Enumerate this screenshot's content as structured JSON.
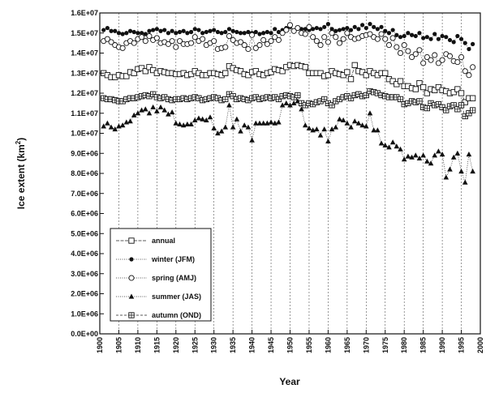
{
  "chart_data": {
    "type": "line",
    "xlabel": "Year",
    "ylabel_main": "Ice extent (km",
    "ylabel_sup": "2",
    "ylabel_end": ")",
    "xlim": [
      1900,
      2000
    ],
    "ylim": [
      0,
      16000000
    ],
    "x_ticks": [
      "1900",
      "1905",
      "1910",
      "1915",
      "1920",
      "1925",
      "1930",
      "1935",
      "1940",
      "1945",
      "1950",
      "1955",
      "1960",
      "1965",
      "1970",
      "1975",
      "1980",
      "1985",
      "1990",
      "1995",
      "2000"
    ],
    "y_ticks": [
      "0.0E+00",
      "1.0E+06",
      "2.0E+06",
      "3.0E+06",
      "4.0E+06",
      "5.0E+06",
      "6.0E+06",
      "7.0E+06",
      "8.0E+06",
      "9.0E+06",
      "1.0E+07",
      "1.1E+07",
      "1.2E+07",
      "1.3E+07",
      "1.4E+07",
      "1.5E+07",
      "1.6E+07"
    ],
    "grid": "vertical dashed lines at each x tick",
    "legend_position": "lower-left",
    "x": [
      1901,
      1902,
      1903,
      1904,
      1905,
      1906,
      1907,
      1908,
      1909,
      1910,
      1911,
      1912,
      1913,
      1914,
      1915,
      1916,
      1917,
      1918,
      1919,
      1920,
      1921,
      1922,
      1923,
      1924,
      1925,
      1926,
      1927,
      1928,
      1929,
      1930,
      1931,
      1932,
      1933,
      1934,
      1935,
      1936,
      1937,
      1938,
      1939,
      1940,
      1941,
      1942,
      1943,
      1944,
      1945,
      1946,
      1947,
      1948,
      1949,
      1950,
      1951,
      1952,
      1953,
      1954,
      1955,
      1956,
      1957,
      1958,
      1959,
      1960,
      1961,
      1962,
      1963,
      1964,
      1965,
      1966,
      1967,
      1968,
      1969,
      1970,
      1971,
      1972,
      1973,
      1974,
      1975,
      1976,
      1977,
      1978,
      1979,
      1980,
      1981,
      1982,
      1983,
      1984,
      1985,
      1986,
      1987,
      1988,
      1989,
      1990,
      1991,
      1992,
      1993,
      1994,
      1995,
      1996,
      1997,
      1998
    ],
    "series": [
      {
        "name": "annual",
        "marker": "square-open",
        "values": [
          13000000,
          12900000,
          12800000,
          12800000,
          12900000,
          12850000,
          12850000,
          13050000,
          13000000,
          13200000,
          13250000,
          13100000,
          13300000,
          13150000,
          13000000,
          13100000,
          13050000,
          13000000,
          13000000,
          12950000,
          12950000,
          13000000,
          12900000,
          12950000,
          13100000,
          13000000,
          12900000,
          12900000,
          13000000,
          13000000,
          12950000,
          12900000,
          13000000,
          13350000,
          13250000,
          13150000,
          13100000,
          12950000,
          12900000,
          13050000,
          13100000,
          12950000,
          12900000,
          13000000,
          13050000,
          13200000,
          13150000,
          13100000,
          13300000,
          13400000,
          13350000,
          13400000,
          13350000,
          13300000,
          13000000,
          13000000,
          13000000,
          13000000,
          12850000,
          12900000,
          13100000,
          13000000,
          12950000,
          12900000,
          13050000,
          12700000,
          13400000,
          13100000,
          13050000,
          12900000,
          13100000,
          13000000,
          12900000,
          13000000,
          13000000,
          12700000,
          12600000,
          12450000,
          12600000,
          12350000,
          12350000,
          12250000,
          12200000,
          12500000,
          12300000,
          12000000,
          12200000,
          12150000,
          12300000,
          12150000,
          12100000,
          12000000,
          12050000,
          12200000,
          12000000,
          11550000,
          11750000,
          11750000
        ]
      },
      {
        "name": "winter (JFM)",
        "marker": "circle-filled",
        "values": [
          15150000,
          15250000,
          15100000,
          15100000,
          15000000,
          14950000,
          15000000,
          15100000,
          15050000,
          15000000,
          15000000,
          14950000,
          15100000,
          15150000,
          15200000,
          15100000,
          15150000,
          15000000,
          15100000,
          15000000,
          15050000,
          15100000,
          15000000,
          15050000,
          15200000,
          15150000,
          15000000,
          15050000,
          15100000,
          15150000,
          15050000,
          15000000,
          15050000,
          15200000,
          15100000,
          15050000,
          15000000,
          15000000,
          15050000,
          15000000,
          15050000,
          14950000,
          15000000,
          15050000,
          15000000,
          15200000,
          15050000,
          15150000,
          15250000,
          15300000,
          15100000,
          15250000,
          15200000,
          15200000,
          15150000,
          15200000,
          15250000,
          15200000,
          15300000,
          15450000,
          15200000,
          15100000,
          15150000,
          15200000,
          15250000,
          15150000,
          15300000,
          15200000,
          15400000,
          15250000,
          15450000,
          15300000,
          15200000,
          15300000,
          15100000,
          15000000,
          15150000,
          14900000,
          14800000,
          14850000,
          15000000,
          14900000,
          14850000,
          15000000,
          14750000,
          14800000,
          14700000,
          14950000,
          14700000,
          14850000,
          14800000,
          14650000,
          14550000,
          14850000,
          14700000,
          14500000,
          14200000,
          14450000
        ]
      },
      {
        "name": "spring (AMJ)",
        "marker": "circle-open",
        "values": [
          14600000,
          14700000,
          14550000,
          14400000,
          14300000,
          14250000,
          14500000,
          14600000,
          14500000,
          14700000,
          14800000,
          14600000,
          14850000,
          14650000,
          14750000,
          14500000,
          14550000,
          14450000,
          14600000,
          14300000,
          14600000,
          14450000,
          14450000,
          14500000,
          14800000,
          14600000,
          14700000,
          14400000,
          14500000,
          14600000,
          14200000,
          14250000,
          14300000,
          14850000,
          14650000,
          14500000,
          14550000,
          14400000,
          14200000,
          14900000,
          14250000,
          14400000,
          14650000,
          14450000,
          14600000,
          14800000,
          14650000,
          15000000,
          15150000,
          15400000,
          15100000,
          15250000,
          15000000,
          14950000,
          15300000,
          14800000,
          14600000,
          14400000,
          14800000,
          14550000,
          15000000,
          14800000,
          14500000,
          14700000,
          15000000,
          14800000,
          14700000,
          14750000,
          14850000,
          14900000,
          14950000,
          14800000,
          14700000,
          14950000,
          14700000,
          14400000,
          14750000,
          14300000,
          14000000,
          14400000,
          14100000,
          13800000,
          13950000,
          14150000,
          13500000,
          13800000,
          13650000,
          13900000,
          13500000,
          13650000,
          13950000,
          13850000,
          13600000,
          13550000,
          13800000,
          13100000,
          12900000,
          13300000
        ]
      },
      {
        "name": "summer (JAS)",
        "marker": "triangle-filled",
        "values": [
          10350000,
          10500000,
          10300000,
          10200000,
          10350000,
          10400000,
          10550000,
          10600000,
          10900000,
          11000000,
          11150000,
          11200000,
          11000000,
          11300000,
          11100000,
          11300000,
          11150000,
          10950000,
          11050000,
          10500000,
          10450000,
          10400000,
          10450000,
          10450000,
          10650000,
          10750000,
          10700000,
          10650000,
          10800000,
          10250000,
          10000000,
          10100000,
          10300000,
          11400000,
          10300000,
          10700000,
          10100000,
          10400000,
          10300000,
          9650000,
          10500000,
          10500000,
          10500000,
          10500000,
          10550000,
          10500000,
          10550000,
          11400000,
          11500000,
          11400000,
          11500000,
          11600000,
          11200000,
          10400000,
          10250000,
          10150000,
          10200000,
          9900000,
          10200000,
          9600000,
          10200000,
          10300000,
          10700000,
          10650000,
          10500000,
          10300000,
          10600000,
          10500000,
          10400000,
          10350000,
          11000000,
          10150000,
          10150000,
          9500000,
          9400000,
          9300000,
          9550000,
          9350000,
          9200000,
          8700000,
          8850000,
          8800000,
          8900000,
          8750000,
          8900000,
          8600000,
          8500000,
          8900000,
          9100000,
          8950000,
          7800000,
          8200000,
          8800000,
          9000000,
          8100000,
          7550000,
          8950000,
          8100000
        ]
      },
      {
        "name": "autumn (OND)",
        "marker": "square-cross",
        "values": [
          11750000,
          11700000,
          11700000,
          11650000,
          11600000,
          11600000,
          11700000,
          11750000,
          11750000,
          11800000,
          11850000,
          11900000,
          11850000,
          11950000,
          11800000,
          11750000,
          11800000,
          11700000,
          11650000,
          11700000,
          11700000,
          11750000,
          11700000,
          11750000,
          11800000,
          11750000,
          11650000,
          11700000,
          11750000,
          11800000,
          11750000,
          11650000,
          11700000,
          11950000,
          11850000,
          11700000,
          11750000,
          11700000,
          11650000,
          11750000,
          11800000,
          11700000,
          11750000,
          11800000,
          11750000,
          11800000,
          11700000,
          11850000,
          11900000,
          11850000,
          11800000,
          11900000,
          11500000,
          11400000,
          11500000,
          11450000,
          11550000,
          11600000,
          11700000,
          11500000,
          11400000,
          11600000,
          11700000,
          11800000,
          11850000,
          11750000,
          11900000,
          11950000,
          11850000,
          11900000,
          12100000,
          12050000,
          12000000,
          11900000,
          11850000,
          11800000,
          11800000,
          11800000,
          11700000,
          11450000,
          11500000,
          11600000,
          11550000,
          11600000,
          11300000,
          11250000,
          11500000,
          11400000,
          11450000,
          11300000,
          11150000,
          11350000,
          11400000,
          11200000,
          11400000,
          10850000,
          11000000,
          11150000
        ]
      }
    ]
  }
}
